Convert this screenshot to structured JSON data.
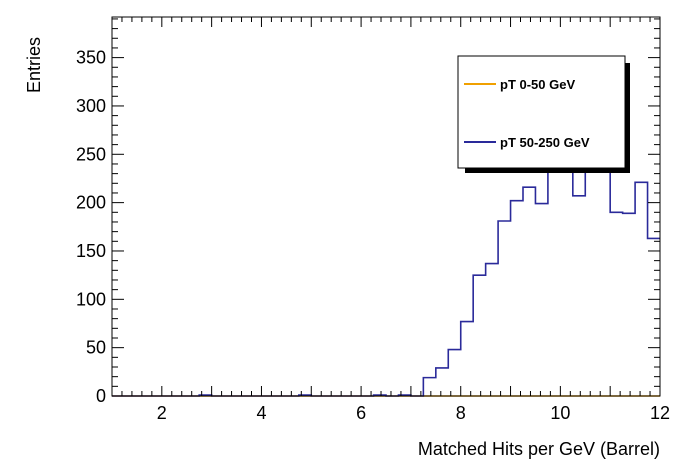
{
  "chart_data": {
    "type": "histogram",
    "xlabel": "Matched Hits per GeV (Barrel)",
    "ylabel": "Entries",
    "xlim": [
      1,
      12
    ],
    "ylim": [
      0,
      392
    ],
    "x_ticks": [
      2,
      4,
      6,
      8,
      10,
      12
    ],
    "y_ticks": [
      0,
      50,
      100,
      150,
      200,
      250,
      300,
      350
    ],
    "bin_edges_start": 1,
    "bin_width": 0.25,
    "legend_position": "top-right",
    "grid": false,
    "series": [
      {
        "name": "pT 0-50 GeV",
        "color": "#f0a000",
        "values": [
          0,
          0,
          0,
          0,
          0,
          0,
          0,
          0,
          0,
          0,
          0,
          0,
          0,
          0,
          0,
          0,
          0,
          0,
          0,
          0,
          0,
          0,
          0,
          0,
          0,
          0,
          0,
          0,
          0,
          0,
          0,
          0,
          0,
          0,
          0,
          0,
          0,
          0,
          0,
          0,
          0,
          0,
          0,
          0
        ]
      },
      {
        "name": "pT 50-250 GeV",
        "color": "#2a2a9a",
        "values": [
          0,
          0,
          0,
          0,
          0,
          0,
          0,
          1,
          0,
          0,
          0,
          0,
          0,
          0,
          0,
          1,
          0,
          0,
          0,
          0,
          0,
          1,
          0,
          1,
          0,
          19,
          29,
          48,
          77,
          125,
          137,
          181,
          202,
          216,
          199,
          232,
          232,
          207,
          234,
          252,
          190,
          189,
          221,
          163
        ]
      }
    ]
  }
}
